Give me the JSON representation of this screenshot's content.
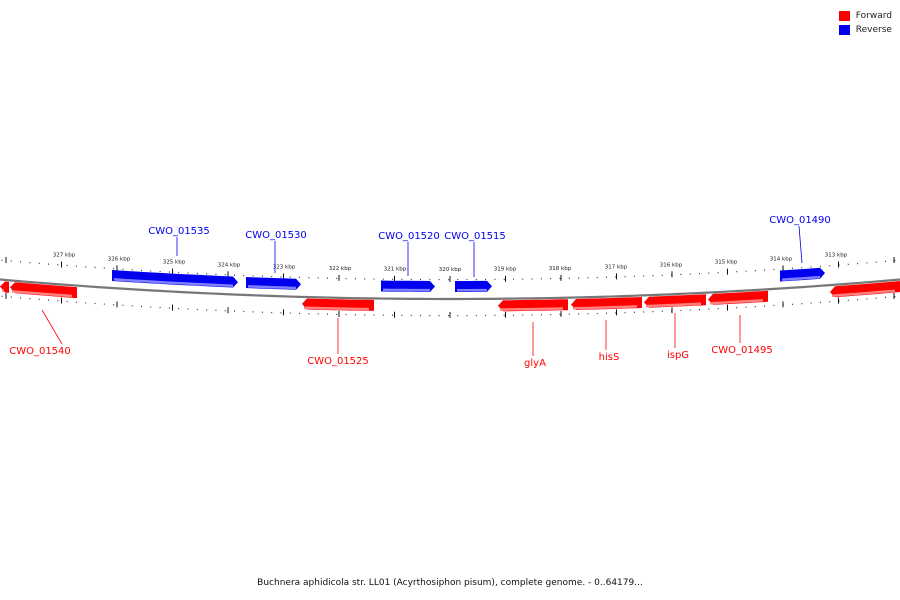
{
  "legend": {
    "forward_label": "Forward",
    "reverse_label": "Reverse",
    "forward_color": "#ff0000",
    "reverse_color": "#0000ee"
  },
  "caption": "Buchnera aphidicola str. LL01 (Acyrthosiphon pisum), complete genome. - 0..64179...",
  "scale": {
    "upper_labels": [
      "327 kbp",
      "326 kbp",
      "325 kbp",
      "324 kbp",
      "323 kbp",
      "322 kbp",
      "321 kbp",
      "320 kbp",
      "319 kbp",
      "318 kbp",
      "317 kbp",
      "316 kbp",
      "315 kbp",
      "314 kbp",
      "313 kbp"
    ]
  },
  "genes": {
    "forward": [
      {
        "label": "CWO_01540"
      },
      {
        "label": "CWO_01525"
      },
      {
        "label": "glyA"
      },
      {
        "label": "hisS"
      },
      {
        "label": "ispG"
      },
      {
        "label": "CWO_01495"
      },
      {
        "label": ""
      }
    ],
    "reverse": [
      {
        "label": "CWO_01535"
      },
      {
        "label": "CWO_01530"
      },
      {
        "label": "CWO_01520"
      },
      {
        "label": "CWO_01515"
      },
      {
        "label": "CWO_01490"
      }
    ]
  }
}
